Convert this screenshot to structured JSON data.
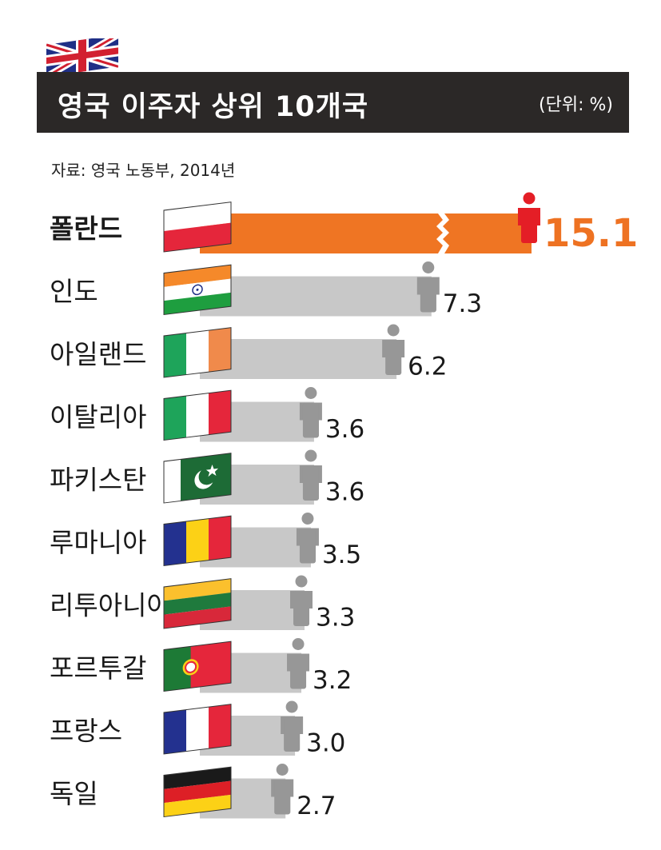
{
  "header": {
    "title": "영국 이주자 상위 10개국",
    "unit": "(단위: %)"
  },
  "source": "자료: 영국 노동부, 2014년",
  "colors": {
    "header_bg": "#2b2827",
    "highlight_bar": "#ef7523",
    "highlight_value": "#ee7222",
    "highlight_person": "#e41e26",
    "bar": "#c8c8c8",
    "person": "#979797"
  },
  "chart_data": {
    "type": "bar",
    "orientation": "horizontal",
    "title": "영국 이주자 상위 10개국",
    "unit": "%",
    "axis_break_on_first_bar": true,
    "categories": [
      "폴란드",
      "인도",
      "아일랜드",
      "이탈리아",
      "파키스탄",
      "루마니아",
      "리투아니아",
      "포르투갈",
      "프랑스",
      "독일"
    ],
    "values": [
      15.1,
      7.3,
      6.2,
      3.6,
      3.6,
      3.5,
      3.3,
      3.2,
      3.0,
      2.7
    ],
    "value_labels": [
      "15.1",
      "7.3",
      "6.2",
      "3.6",
      "3.6",
      "3.5",
      "3.3",
      "3.2",
      "3.0",
      "2.7"
    ],
    "flag_icons": [
      "poland-flag-icon",
      "india-flag-icon",
      "ireland-flag-icon",
      "italy-flag-icon",
      "pakistan-flag-icon",
      "romania-flag-icon",
      "lithuania-flag-icon",
      "portugal-flag-icon",
      "france-flag-icon",
      "germany-flag-icon"
    ]
  }
}
